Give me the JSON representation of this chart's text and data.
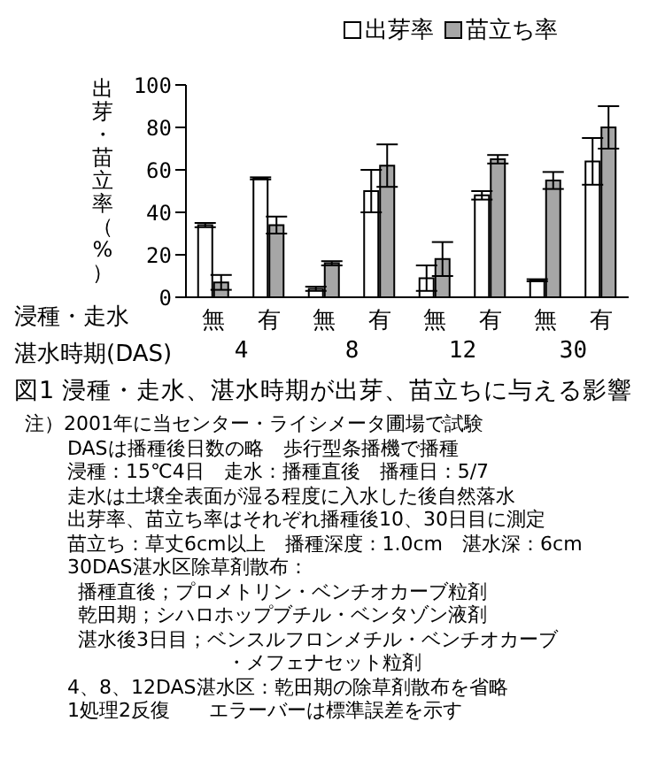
{
  "chart_data": {
    "type": "bar",
    "title": "図1 浸種・走水、湛水時期が出芽、苗立ちに与える影響",
    "ylabel": "出芽・苗立率（%）",
    "xlabel": "浸種・走水",
    "categories": [
      "無",
      "有",
      "無",
      "有",
      "無",
      "有",
      "無",
      "有"
    ],
    "series": [
      {
        "name": "出芽率",
        "color": "#ffffff",
        "values": [
          34,
          56,
          4,
          50,
          9,
          48,
          8,
          64
        ],
        "errors": [
          1,
          0.5,
          1,
          10,
          6,
          2,
          0.5,
          11
        ]
      },
      {
        "name": "苗立ち率",
        "color": "#a6a6a6",
        "values": [
          7,
          34,
          16,
          62,
          18,
          65,
          55,
          80
        ],
        "errors": [
          3.5,
          4,
          1,
          10,
          8,
          2,
          4,
          10
        ]
      }
    ],
    "ylim": [
      0,
      100
    ],
    "yticks": [
      0,
      20,
      40,
      60,
      80,
      100
    ],
    "legend": "top right",
    "annotations": [
      "湛水時期(DAS)",
      "4",
      "8",
      "12",
      "30",
      "注）2001年に当センター・ライシメータ圃場で試験",
      "DASは播種後日数の略　歩行型条播機で播種",
      "浸種：15℃4日　走水：播種直後　播種日：5/7",
      "走水は土壌全表面が湿る程度に入水した後自然落水",
      "出芽率、苗立ち率はそれぞれ播種後10、30日目に測定",
      "苗立ち：草丈6cm以上　播種深度：1.0cm　湛水深：6cm",
      "30DAS湛水区除草剤散布：",
      "播種直後；プロメトリン・ベンチオカーブ粒剤",
      "乾田期；シハロホップブチル・ベンタゾン液剤",
      "湛水後3日目；ベンスルフロンメチル・ベンチオカーブ",
      "・メフェナセット粒剤",
      "4、8、12DAS湛水区：乾田期の除草剤散布を省略",
      "1処理2反復　　エラーバーは標準誤差を示す"
    ]
  }
}
